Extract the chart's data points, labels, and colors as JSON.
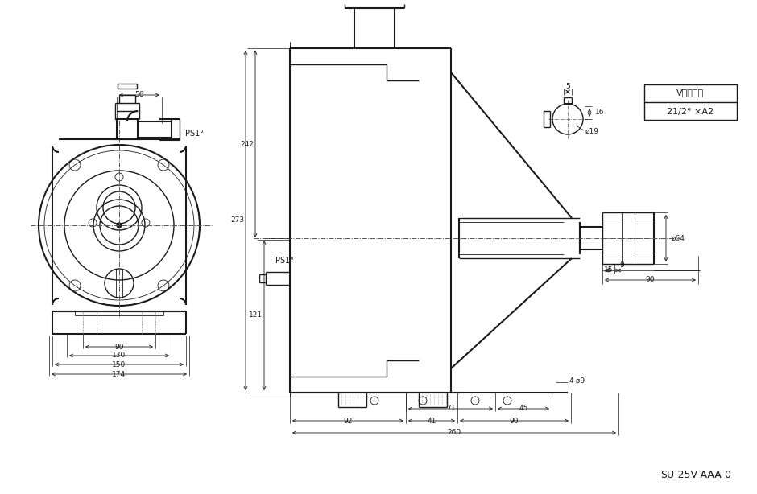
{
  "bg_color": "#ffffff",
  "line_color": "#1a1a1a",
  "dim_color": "#1a1a1a",
  "centerline_color": "#555555",
  "title_text": "SU-25V-AAA-0",
  "vpulley_label1": "Vプーリー",
  "vpulley_label2": "21/2° ×A2",
  "dim_56": "56",
  "dim_PS1_left": "PS1°",
  "dim_PS1_right": "PS1°",
  "dim_273": "273",
  "dim_242": "242",
  "dim_121": "121",
  "dim_90_left": "90",
  "dim_130": "130",
  "dim_150": "150",
  "dim_174": "174",
  "dim_92": "92",
  "dim_41": "41",
  "dim_90_right": "90",
  "dim_71": "71",
  "dim_45": "45",
  "dim_260": "260",
  "dim_4d9": "4-ø9",
  "dim_phi64": "ø64",
  "dim_15": "15",
  "dim_90v": "90",
  "dim_9": "9",
  "dim_5": "5",
  "dim_16": "16",
  "dim_phi19": "ø19"
}
